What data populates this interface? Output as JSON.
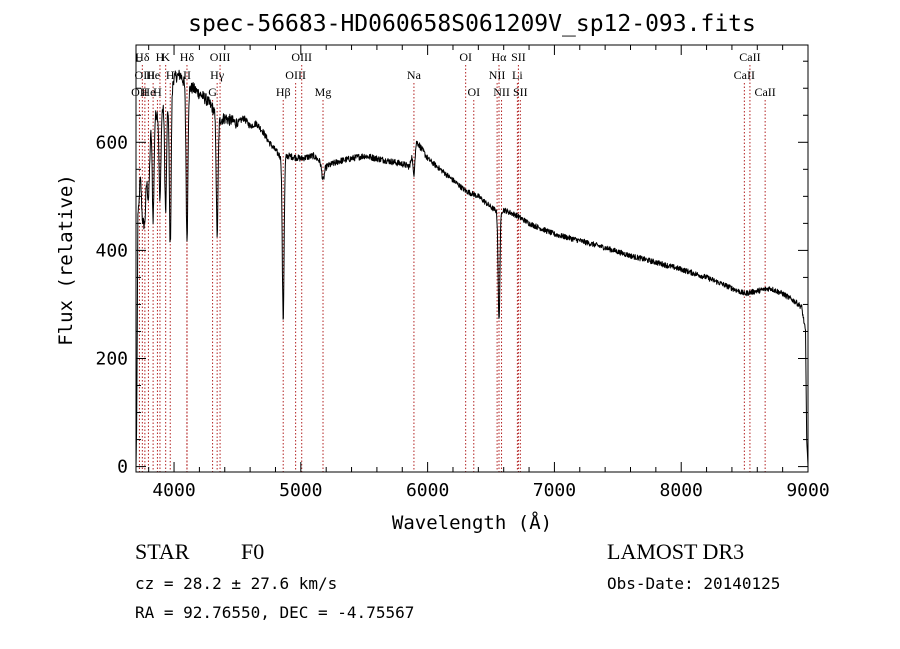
{
  "chart_data": {
    "type": "line",
    "title": "spec-56683-HD060658S061209V_sp12-093.fits",
    "xlabel": "Wavelength (Å)",
    "ylabel": "Flux (relative)",
    "xlim": [
      3700,
      9000
    ],
    "ylim": [
      -10,
      780
    ],
    "x_ticks": [
      4000,
      5000,
      6000,
      7000,
      8000,
      9000
    ],
    "y_ticks": [
      0,
      200,
      400,
      600
    ],
    "line_color": "#000000",
    "marker_color": "#b22222",
    "spectrum_anchors": [
      {
        "x": 3700,
        "y": 10
      },
      {
        "x": 3705,
        "y": 100
      },
      {
        "x": 3715,
        "y": 560
      },
      {
        "x": 3730,
        "y": 600
      },
      {
        "x": 3760,
        "y": 620
      },
      {
        "x": 3780,
        "y": 630
      },
      {
        "x": 3800,
        "y": 640
      },
      {
        "x": 3840,
        "y": 650
      },
      {
        "x": 3880,
        "y": 655
      },
      {
        "x": 3920,
        "y": 665
      },
      {
        "x": 3960,
        "y": 680
      },
      {
        "x": 4000,
        "y": 720
      },
      {
        "x": 4050,
        "y": 725
      },
      {
        "x": 4100,
        "y": 700
      },
      {
        "x": 4150,
        "y": 700
      },
      {
        "x": 4200,
        "y": 690
      },
      {
        "x": 4250,
        "y": 680
      },
      {
        "x": 4300,
        "y": 665
      },
      {
        "x": 4350,
        "y": 640
      },
      {
        "x": 4400,
        "y": 645
      },
      {
        "x": 4450,
        "y": 640
      },
      {
        "x": 4500,
        "y": 635
      },
      {
        "x": 4550,
        "y": 645
      },
      {
        "x": 4600,
        "y": 630
      },
      {
        "x": 4650,
        "y": 635
      },
      {
        "x": 4700,
        "y": 620
      },
      {
        "x": 4750,
        "y": 600
      },
      {
        "x": 4800,
        "y": 585
      },
      {
        "x": 4850,
        "y": 570
      },
      {
        "x": 4900,
        "y": 575
      },
      {
        "x": 5000,
        "y": 570
      },
      {
        "x": 5100,
        "y": 575
      },
      {
        "x": 5200,
        "y": 555
      },
      {
        "x": 5300,
        "y": 565
      },
      {
        "x": 5400,
        "y": 570
      },
      {
        "x": 5500,
        "y": 575
      },
      {
        "x": 5600,
        "y": 570
      },
      {
        "x": 5700,
        "y": 565
      },
      {
        "x": 5800,
        "y": 560
      },
      {
        "x": 5860,
        "y": 555
      },
      {
        "x": 5880,
        "y": 600
      },
      {
        "x": 5900,
        "y": 620
      },
      {
        "x": 5920,
        "y": 600
      },
      {
        "x": 6000,
        "y": 570
      },
      {
        "x": 6100,
        "y": 550
      },
      {
        "x": 6200,
        "y": 530
      },
      {
        "x": 6300,
        "y": 510
      },
      {
        "x": 6400,
        "y": 500
      },
      {
        "x": 6500,
        "y": 480
      },
      {
        "x": 6560,
        "y": 470
      },
      {
        "x": 6600,
        "y": 475
      },
      {
        "x": 6700,
        "y": 465
      },
      {
        "x": 6800,
        "y": 450
      },
      {
        "x": 6900,
        "y": 440
      },
      {
        "x": 7000,
        "y": 430
      },
      {
        "x": 7200,
        "y": 418
      },
      {
        "x": 7400,
        "y": 405
      },
      {
        "x": 7600,
        "y": 390
      },
      {
        "x": 7800,
        "y": 378
      },
      {
        "x": 8000,
        "y": 365
      },
      {
        "x": 8200,
        "y": 350
      },
      {
        "x": 8400,
        "y": 330
      },
      {
        "x": 8500,
        "y": 320
      },
      {
        "x": 8600,
        "y": 325
      },
      {
        "x": 8700,
        "y": 330
      },
      {
        "x": 8800,
        "y": 320
      },
      {
        "x": 8900,
        "y": 305
      },
      {
        "x": 8950,
        "y": 295
      },
      {
        "x": 8980,
        "y": 250
      },
      {
        "x": 8990,
        "y": 50
      },
      {
        "x": 9000,
        "y": 0
      }
    ],
    "absorption_dips": [
      {
        "x": 3720,
        "depth": 100
      },
      {
        "x": 3750,
        "depth": 130
      },
      {
        "x": 3770,
        "depth": 150
      },
      {
        "x": 3798,
        "depth": 140
      },
      {
        "x": 3835,
        "depth": 190
      },
      {
        "x": 3889,
        "depth": 170
      },
      {
        "x": 3934,
        "depth": 200
      },
      {
        "x": 3970,
        "depth": 280
      },
      {
        "x": 4102,
        "depth": 280
      },
      {
        "x": 4340,
        "depth": 215
      },
      {
        "x": 4861,
        "depth": 300
      },
      {
        "x": 5175,
        "depth": 30
      },
      {
        "x": 5892,
        "depth": 70
      },
      {
        "x": 6563,
        "depth": 200
      }
    ],
    "spectral_lines": [
      {
        "wavelength": 3727,
        "label": "OII",
        "row": 2
      },
      {
        "wavelength": 3750,
        "label": "Hδ",
        "row": 0
      },
      {
        "wavelength": 3770,
        "label": "OIII",
        "row": 1
      },
      {
        "wavelength": 3798,
        "label": "He",
        "row": 2
      },
      {
        "wavelength": 3835,
        "label": "He",
        "row": 1
      },
      {
        "wavelength": 3869,
        "label": "H",
        "row": 2
      },
      {
        "wavelength": 3889,
        "label": "H",
        "row": 0
      },
      {
        "wavelength": 3934,
        "label": "K",
        "row": 0
      },
      {
        "wavelength": 3970,
        "label": "H",
        "row": 1
      },
      {
        "wavelength": 4102,
        "label": "Hδ",
        "row": 0
      },
      {
        "wavelength": 4102,
        "label": "II",
        "row": 1
      },
      {
        "wavelength": 4304,
        "label": "G",
        "row": 2
      },
      {
        "wavelength": 4340,
        "label": "Hγ",
        "row": 1
      },
      {
        "wavelength": 4363,
        "label": "OIII",
        "row": 0
      },
      {
        "wavelength": 4861,
        "label": "Hβ",
        "row": 2
      },
      {
        "wavelength": 4959,
        "label": "OIII",
        "row": 1
      },
      {
        "wavelength": 5007,
        "label": "OIII",
        "row": 0
      },
      {
        "wavelength": 5175,
        "label": "Mg",
        "row": 2
      },
      {
        "wavelength": 5892,
        "label": "Na",
        "row": 1
      },
      {
        "wavelength": 6300,
        "label": "OI",
        "row": 0
      },
      {
        "wavelength": 6364,
        "label": "OI",
        "row": 2
      },
      {
        "wavelength": 6548,
        "label": "NII",
        "row": 1
      },
      {
        "wavelength": 6563,
        "label": "Hα",
        "row": 0
      },
      {
        "wavelength": 6583,
        "label": "NII",
        "row": 2
      },
      {
        "wavelength": 6708,
        "label": "Li",
        "row": 1
      },
      {
        "wavelength": 6716,
        "label": "SII",
        "row": 0
      },
      {
        "wavelength": 6731,
        "label": "SII",
        "row": 2
      },
      {
        "wavelength": 8498,
        "label": "CaII",
        "row": 1
      },
      {
        "wavelength": 8542,
        "label": "CaII",
        "row": 0
      },
      {
        "wavelength": 8662,
        "label": "CaII",
        "row": 2
      }
    ]
  },
  "info": {
    "object_class": "STAR",
    "subclass": "F0",
    "survey": "LAMOST DR3",
    "redshift": "cz = 28.2 ± 27.6 km/s",
    "obs_date": "Obs-Date: 20140125",
    "coords": "RA =  92.76550, DEC =  -4.75567"
  }
}
